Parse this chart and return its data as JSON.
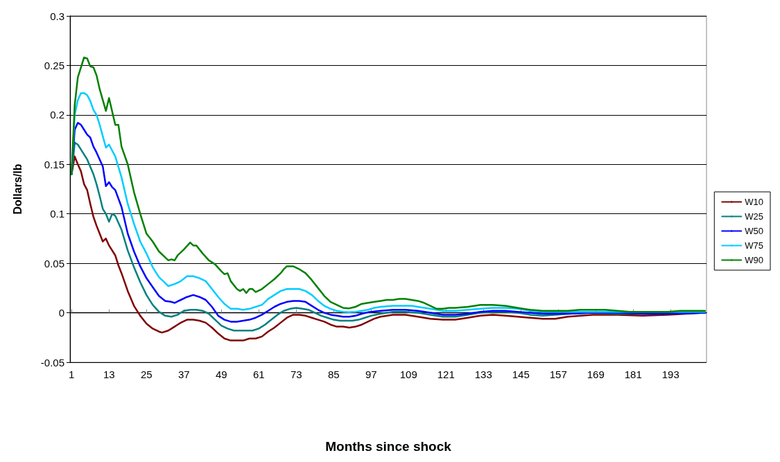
{
  "chart_data": {
    "type": "line",
    "xlabel": "Months since shock",
    "ylabel": "Dollars/lb",
    "xlim": [
      0.5,
      204.5
    ],
    "xticks": [
      1,
      13,
      25,
      37,
      49,
      61,
      73,
      85,
      97,
      109,
      121,
      133,
      145,
      157,
      169,
      181,
      193
    ],
    "ylim": [
      -0.05,
      0.3
    ],
    "yticks": [
      -0.05,
      0,
      0.05,
      0.1,
      0.15,
      0.2,
      0.25,
      0.3
    ],
    "grid": "y",
    "legend": "right",
    "marker": "none",
    "line_style": "solid",
    "series": [
      {
        "name": "W10",
        "color": "#800000",
        "x": [
          1,
          2,
          3,
          4,
          5,
          6,
          7,
          8,
          9,
          10,
          11,
          12,
          13,
          15,
          16,
          17,
          19,
          21,
          23,
          25,
          27,
          29,
          30,
          32,
          34,
          36,
          38,
          40,
          42,
          44,
          46,
          48,
          50,
          52,
          54,
          56,
          58,
          60,
          62,
          64,
          66,
          68,
          70,
          72,
          74,
          76,
          78,
          80,
          82,
          84,
          86,
          88,
          90,
          92,
          94,
          96,
          98,
          100,
          104,
          108,
          112,
          116,
          120,
          124,
          128,
          132,
          136,
          140,
          144,
          148,
          152,
          156,
          160,
          168,
          176,
          184,
          192,
          204
        ],
        "values": [
          0.14,
          0.158,
          0.15,
          0.143,
          0.13,
          0.124,
          0.11,
          0.097,
          0.088,
          0.08,
          0.072,
          0.075,
          0.068,
          0.058,
          0.048,
          0.04,
          0.022,
          0.007,
          -0.003,
          -0.011,
          -0.016,
          -0.019,
          -0.02,
          -0.018,
          -0.014,
          -0.01,
          -0.007,
          -0.007,
          -0.008,
          -0.01,
          -0.015,
          -0.021,
          -0.026,
          -0.028,
          -0.028,
          -0.028,
          -0.026,
          -0.026,
          -0.024,
          -0.019,
          -0.015,
          -0.01,
          -0.005,
          -0.002,
          -0.002,
          -0.003,
          -0.005,
          -0.007,
          -0.009,
          -0.012,
          -0.014,
          -0.014,
          -0.015,
          -0.014,
          -0.012,
          -0.009,
          -0.006,
          -0.004,
          -0.002,
          -0.002,
          -0.004,
          -0.006,
          -0.007,
          -0.007,
          -0.005,
          -0.003,
          -0.002,
          -0.003,
          -0.004,
          -0.005,
          -0.006,
          -0.006,
          -0.004,
          -0.002,
          -0.002,
          -0.003,
          -0.002,
          0
        ]
      },
      {
        "name": "W25",
        "color": "#008080",
        "x": [
          1,
          2,
          3,
          4,
          6,
          8,
          9,
          10,
          11,
          12,
          13,
          14,
          15,
          17,
          19,
          21,
          23,
          25,
          27,
          29,
          31,
          33,
          35,
          37,
          39,
          41,
          43,
          45,
          47,
          49,
          51,
          53,
          55,
          57,
          59,
          61,
          63,
          65,
          67,
          69,
          71,
          73,
          75,
          77,
          79,
          81,
          83,
          85,
          87,
          89,
          91,
          93,
          95,
          97,
          100,
          104,
          108,
          112,
          116,
          120,
          124,
          128,
          132,
          136,
          140,
          144,
          148,
          152,
          156,
          160,
          168,
          176,
          184,
          192,
          204
        ],
        "values": [
          0.14,
          0.172,
          0.17,
          0.165,
          0.155,
          0.14,
          0.13,
          0.118,
          0.105,
          0.1,
          0.092,
          0.1,
          0.098,
          0.084,
          0.063,
          0.046,
          0.031,
          0.018,
          0.008,
          0.001,
          -0.003,
          -0.004,
          -0.002,
          0.002,
          0.003,
          0.003,
          0.002,
          -0.001,
          -0.007,
          -0.013,
          -0.016,
          -0.018,
          -0.018,
          -0.018,
          -0.018,
          -0.016,
          -0.012,
          -0.007,
          -0.002,
          0.002,
          0.004,
          0.005,
          0.004,
          0.003,
          0,
          -0.003,
          -0.005,
          -0.007,
          -0.008,
          -0.008,
          -0.008,
          -0.007,
          -0.005,
          -0.003,
          -0.001,
          0.001,
          0.001,
          0,
          -0.002,
          -0.004,
          -0.004,
          -0.002,
          0,
          0.001,
          0.001,
          0,
          -0.002,
          -0.003,
          -0.002,
          -0.001,
          0,
          -0.001,
          -0.001,
          -0.001,
          0
        ]
      },
      {
        "name": "W50",
        "color": "#0000ff",
        "x": [
          1,
          2,
          3,
          4,
          5,
          6,
          7,
          8,
          9,
          10,
          11,
          12,
          13,
          14,
          15,
          17,
          19,
          21,
          23,
          25,
          27,
          29,
          31,
          33,
          34,
          36,
          38,
          40,
          42,
          44,
          46,
          48,
          50,
          52,
          54,
          56,
          58,
          60,
          62,
          64,
          66,
          68,
          70,
          72,
          74,
          76,
          78,
          80,
          82,
          84,
          86,
          88,
          90,
          92,
          94,
          96,
          100,
          104,
          108,
          112,
          116,
          120,
          124,
          128,
          132,
          136,
          140,
          144,
          148,
          152,
          156,
          160,
          168,
          176,
          184,
          192,
          204
        ],
        "values": [
          0.14,
          0.185,
          0.192,
          0.19,
          0.185,
          0.18,
          0.177,
          0.168,
          0.162,
          0.155,
          0.148,
          0.128,
          0.132,
          0.127,
          0.124,
          0.107,
          0.08,
          0.062,
          0.047,
          0.035,
          0.026,
          0.017,
          0.012,
          0.011,
          0.01,
          0.013,
          0.016,
          0.018,
          0.016,
          0.013,
          0.006,
          -0.003,
          -0.007,
          -0.009,
          -0.009,
          -0.008,
          -0.007,
          -0.005,
          -0.002,
          0.002,
          0.006,
          0.009,
          0.011,
          0.012,
          0.012,
          0.011,
          0.007,
          0.003,
          0,
          -0.002,
          -0.003,
          -0.004,
          -0.004,
          -0.003,
          -0.001,
          0.0005,
          0.002,
          0.003,
          0.003,
          0.002,
          0,
          -0.002,
          -0.002,
          -0.001,
          0.001,
          0.002,
          0.002,
          0.001,
          0,
          -0.001,
          -0.001,
          -0.001,
          0,
          0,
          -0.001,
          -0.001,
          0
        ]
      },
      {
        "name": "W75",
        "color": "#00ccff",
        "x": [
          1,
          2,
          3,
          4,
          5,
          6,
          7,
          8,
          9,
          10,
          12,
          13,
          15,
          17,
          19,
          21,
          23,
          25,
          27,
          29,
          31,
          32,
          34,
          36,
          38,
          40,
          42,
          44,
          46,
          48,
          50,
          52,
          54,
          56,
          58,
          60,
          62,
          64,
          66,
          68,
          70,
          72,
          74,
          76,
          78,
          80,
          82,
          84,
          86,
          88,
          90,
          92,
          94,
          96,
          98,
          100,
          104,
          108,
          110,
          112,
          116,
          120,
          124,
          128,
          132,
          136,
          140,
          144,
          148,
          152,
          156,
          168,
          184,
          204
        ],
        "values": [
          0.14,
          0.2,
          0.215,
          0.222,
          0.222,
          0.22,
          0.214,
          0.205,
          0.2,
          0.19,
          0.167,
          0.17,
          0.158,
          0.137,
          0.11,
          0.09,
          0.072,
          0.06,
          0.046,
          0.036,
          0.03,
          0.027,
          0.029,
          0.032,
          0.037,
          0.037,
          0.035,
          0.032,
          0.024,
          0.016,
          0.009,
          0.004,
          0.004,
          0.003,
          0.004,
          0.006,
          0.008,
          0.014,
          0.018,
          0.022,
          0.024,
          0.024,
          0.024,
          0.022,
          0.018,
          0.012,
          0.007,
          0.004,
          0.002,
          0.001,
          0.0005,
          0.001,
          0.002,
          0.003,
          0.005,
          0.006,
          0.007,
          0.007,
          0.007,
          0.006,
          0.004,
          0.002,
          0.002,
          0.003,
          0.004,
          0.005,
          0.005,
          0.004,
          0.002,
          0.001,
          0.001,
          0.001,
          0.001,
          0.001
        ]
      },
      {
        "name": "W90",
        "color": "#008000",
        "x": [
          1,
          2,
          3,
          5,
          6,
          7,
          8,
          9,
          10,
          12,
          13,
          15,
          16,
          17,
          19,
          21,
          23,
          25,
          27,
          29,
          31,
          32,
          33,
          34,
          35,
          37,
          39,
          40,
          41,
          43,
          45,
          47,
          49,
          50,
          51,
          52,
          54,
          55,
          56,
          57,
          58,
          59,
          60,
          62,
          64,
          66,
          68,
          69,
          70,
          72,
          74,
          76,
          78,
          80,
          82,
          84,
          86,
          88,
          90,
          92,
          94,
          96,
          98,
          100,
          102,
          104,
          106,
          108,
          110,
          112,
          114,
          116,
          118,
          120,
          122,
          124,
          128,
          132,
          136,
          140,
          144,
          148,
          152,
          156,
          160,
          164,
          168,
          172,
          176,
          180,
          184,
          188,
          192,
          196,
          200,
          204
        ],
        "values": [
          0.14,
          0.21,
          0.238,
          0.258,
          0.257,
          0.249,
          0.248,
          0.24,
          0.226,
          0.204,
          0.217,
          0.19,
          0.19,
          0.168,
          0.15,
          0.122,
          0.1,
          0.08,
          0.072,
          0.062,
          0.056,
          0.053,
          0.054,
          0.053,
          0.058,
          0.064,
          0.071,
          0.068,
          0.068,
          0.06,
          0.053,
          0.049,
          0.042,
          0.039,
          0.04,
          0.032,
          0.024,
          0.022,
          0.024,
          0.02,
          0.024,
          0.024,
          0.021,
          0.024,
          0.029,
          0.034,
          0.04,
          0.044,
          0.047,
          0.047,
          0.044,
          0.04,
          0.033,
          0.025,
          0.017,
          0.011,
          0.008,
          0.005,
          0.0045,
          0.006,
          0.009,
          0.01,
          0.011,
          0.012,
          0.013,
          0.013,
          0.014,
          0.014,
          0.013,
          0.012,
          0.01,
          0.007,
          0.004,
          0.004,
          0.005,
          0.005,
          0.006,
          0.008,
          0.008,
          0.007,
          0.005,
          0.003,
          0.002,
          0.002,
          0.002,
          0.003,
          0.003,
          0.003,
          0.002,
          0.001,
          0.001,
          0.001,
          0.001,
          0.002,
          0.002,
          0.002
        ]
      }
    ]
  }
}
